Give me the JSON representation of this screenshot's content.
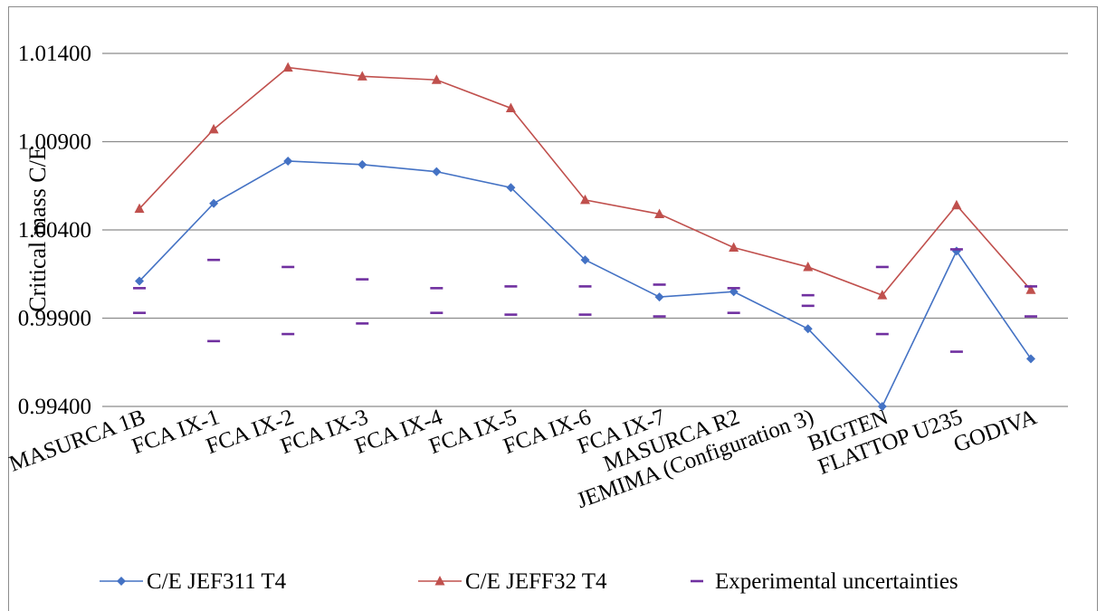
{
  "chart_data": {
    "type": "line",
    "title": "",
    "xlabel": "",
    "ylabel": "Critical mass C/E",
    "ylim": [
      0.994,
      1.014
    ],
    "yticks": [
      "0.99400",
      "0.99900",
      "1.00400",
      "1.00900",
      "1.01400"
    ],
    "ytick_values": [
      0.994,
      0.999,
      1.004,
      1.009,
      1.014
    ],
    "grid": true,
    "legend_position": "bottom",
    "categories": [
      "MASURCA 1B",
      "FCA IX-1",
      "FCA IX-2",
      "FCA IX-3",
      "FCA IX-4",
      "FCA IX-5",
      "FCA IX-6",
      "FCA IX-7",
      "MASURCA R2",
      "JEMIMA (Configuration 3)",
      "BIGTEN",
      "FLATTOP U235",
      "GODIVA"
    ],
    "series": [
      {
        "name": "C/E JEF311 T4",
        "color": "#4472c4",
        "marker": "diamond",
        "values": [
          1.0011,
          1.0055,
          1.0079,
          1.0077,
          1.0073,
          1.0064,
          1.0023,
          1.0002,
          1.0005,
          0.9984,
          0.994,
          1.0028,
          0.9967
        ]
      },
      {
        "name": "C/E JEFF32 T4",
        "color": "#c0504d",
        "marker": "triangle",
        "values": [
          1.0052,
          1.0097,
          1.0132,
          1.0127,
          1.0125,
          1.0109,
          1.0057,
          1.0049,
          1.003,
          1.0019,
          1.0003,
          1.0054,
          1.0006
        ]
      }
    ],
    "uncertainties": {
      "name": "Experimental uncertainties",
      "color": "#7030a0",
      "marker": "dash",
      "upper": [
        1.0007,
        1.0023,
        1.0019,
        1.0012,
        1.0007,
        1.0008,
        1.0008,
        1.0009,
        1.0007,
        1.0003,
        1.0019,
        1.0029,
        1.0008
      ],
      "lower": [
        0.9993,
        0.9977,
        0.9981,
        0.9987,
        0.9993,
        0.9992,
        0.9992,
        0.9991,
        0.9993,
        0.9997,
        0.9981,
        0.9971,
        0.9991
      ]
    }
  }
}
